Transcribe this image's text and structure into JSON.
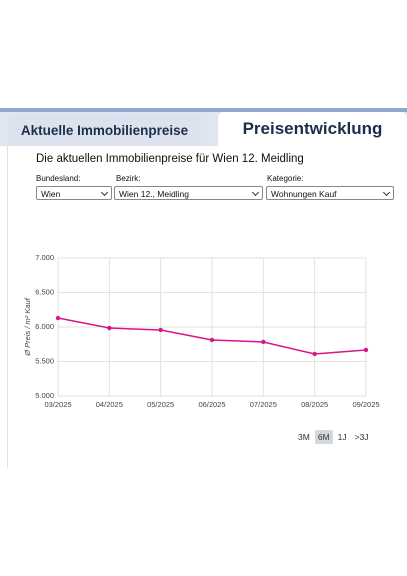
{
  "tabs": {
    "left": "Aktuelle Immobilienpreise",
    "right": "Preisentwicklung"
  },
  "heading": "Die aktuellen Immobilienpreise für Wien 12. Meidling",
  "filters": [
    {
      "label": "Bundesland:",
      "value": "Wien"
    },
    {
      "label": "Bezirk:",
      "value": "Wien 12., Meidling"
    },
    {
      "label": "Kategorie:",
      "value": "Wohnungen Kauf"
    }
  ],
  "ranges": [
    "3M",
    "6M",
    "1J",
    ">3J"
  ],
  "active_range": "6M",
  "chart_data": {
    "type": "line",
    "y_label": "Ø Preis / m² Kauf",
    "categories": [
      "03/2025",
      "04/2025",
      "05/2025",
      "06/2025",
      "07/2025",
      "08/2025",
      "09/2025"
    ],
    "values": [
      6130,
      5985,
      5957,
      5812,
      5783,
      5609,
      5667
    ],
    "color": "#d6168b",
    "ylim": [
      5000,
      7000
    ],
    "yticks": [
      {
        "value": 5000,
        "label": "5.000"
      },
      {
        "value": 5500,
        "label": "5.500"
      },
      {
        "value": 6000,
        "label": "6.000"
      },
      {
        "value": 6500,
        "label": "6.500"
      },
      {
        "value": 7000,
        "label": "7.000"
      }
    ],
    "grid": true
  }
}
